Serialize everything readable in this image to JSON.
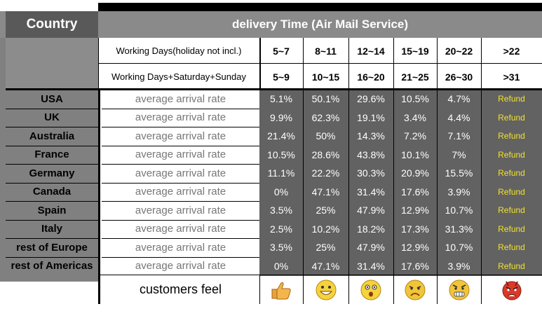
{
  "header": {
    "country_label": "Country",
    "delivery_label": "delivery Time (Air Mail Service)"
  },
  "day_types": [
    {
      "label": "Working Days(holiday not incl.)",
      "ranges": [
        "5~7",
        "8~11",
        "12~14",
        "15~19",
        "20~22",
        ">22"
      ]
    },
    {
      "label": "Working Days+Saturday+Sunday",
      "ranges": [
        "5~9",
        "10~15",
        "16~20",
        "21~25",
        "26~30",
        ">31"
      ]
    }
  ],
  "rows": [
    {
      "country": "USA",
      "metric": "average arrival rate",
      "values": [
        "5.1%",
        "50.1%",
        "29.6%",
        "10.5%",
        "4.7%"
      ],
      "last": "Refund"
    },
    {
      "country": "UK",
      "metric": "average arrival rate",
      "values": [
        "9.9%",
        "62.3%",
        "19.1%",
        "3.4%",
        "4.4%"
      ],
      "last": "Refund"
    },
    {
      "country": "Australia",
      "metric": "average arrival rate",
      "values": [
        "21.4%",
        "50%",
        "14.3%",
        "7.2%",
        "7.1%"
      ],
      "last": "Refund"
    },
    {
      "country": "France",
      "metric": "average arrival rate",
      "values": [
        "10.5%",
        "28.6%",
        "43.8%",
        "10.1%",
        "7%"
      ],
      "last": "Refund"
    },
    {
      "country": "Germany",
      "metric": "average arrival rate",
      "values": [
        "11.1%",
        "22.2%",
        "30.3%",
        "20.9%",
        "15.5%"
      ],
      "last": "Refund"
    },
    {
      "country": "Canada",
      "metric": "average arrival rate",
      "values": [
        "0%",
        "47.1%",
        "31.4%",
        "17.6%",
        "3.9%"
      ],
      "last": "Refund"
    },
    {
      "country": "Spain",
      "metric": "average arrival rate",
      "values": [
        "3.5%",
        "25%",
        "47.9%",
        "12.9%",
        "10.7%"
      ],
      "last": "Refund"
    },
    {
      "country": "Italy",
      "metric": "average arrival rate",
      "values": [
        "2.5%",
        "10.2%",
        "18.2%",
        "17.3%",
        "31.3%"
      ],
      "last": "Refund"
    },
    {
      "country": "rest of Europe",
      "metric": "average arrival rate",
      "values": [
        "3.5%",
        "25%",
        "47.9%",
        "12.9%",
        "10.7%"
      ],
      "last": "Refund"
    },
    {
      "country": "rest of Americas",
      "metric": "average arrival rate",
      "values": [
        "0%",
        "47.1%",
        "31.4%",
        "17.6%",
        "3.9%"
      ],
      "last": "Refund"
    }
  ],
  "feel": {
    "label": "customers feel",
    "faces": [
      "thumbs-up-icon",
      "grinning-face-icon",
      "surprised-face-icon",
      "frowning-face-icon",
      "angry-face-icon",
      "furious-face-icon"
    ]
  },
  "colors": {
    "header_bar": "#8a8a8a",
    "dark_cells": "#626262",
    "refund_text": "#f0e130"
  }
}
